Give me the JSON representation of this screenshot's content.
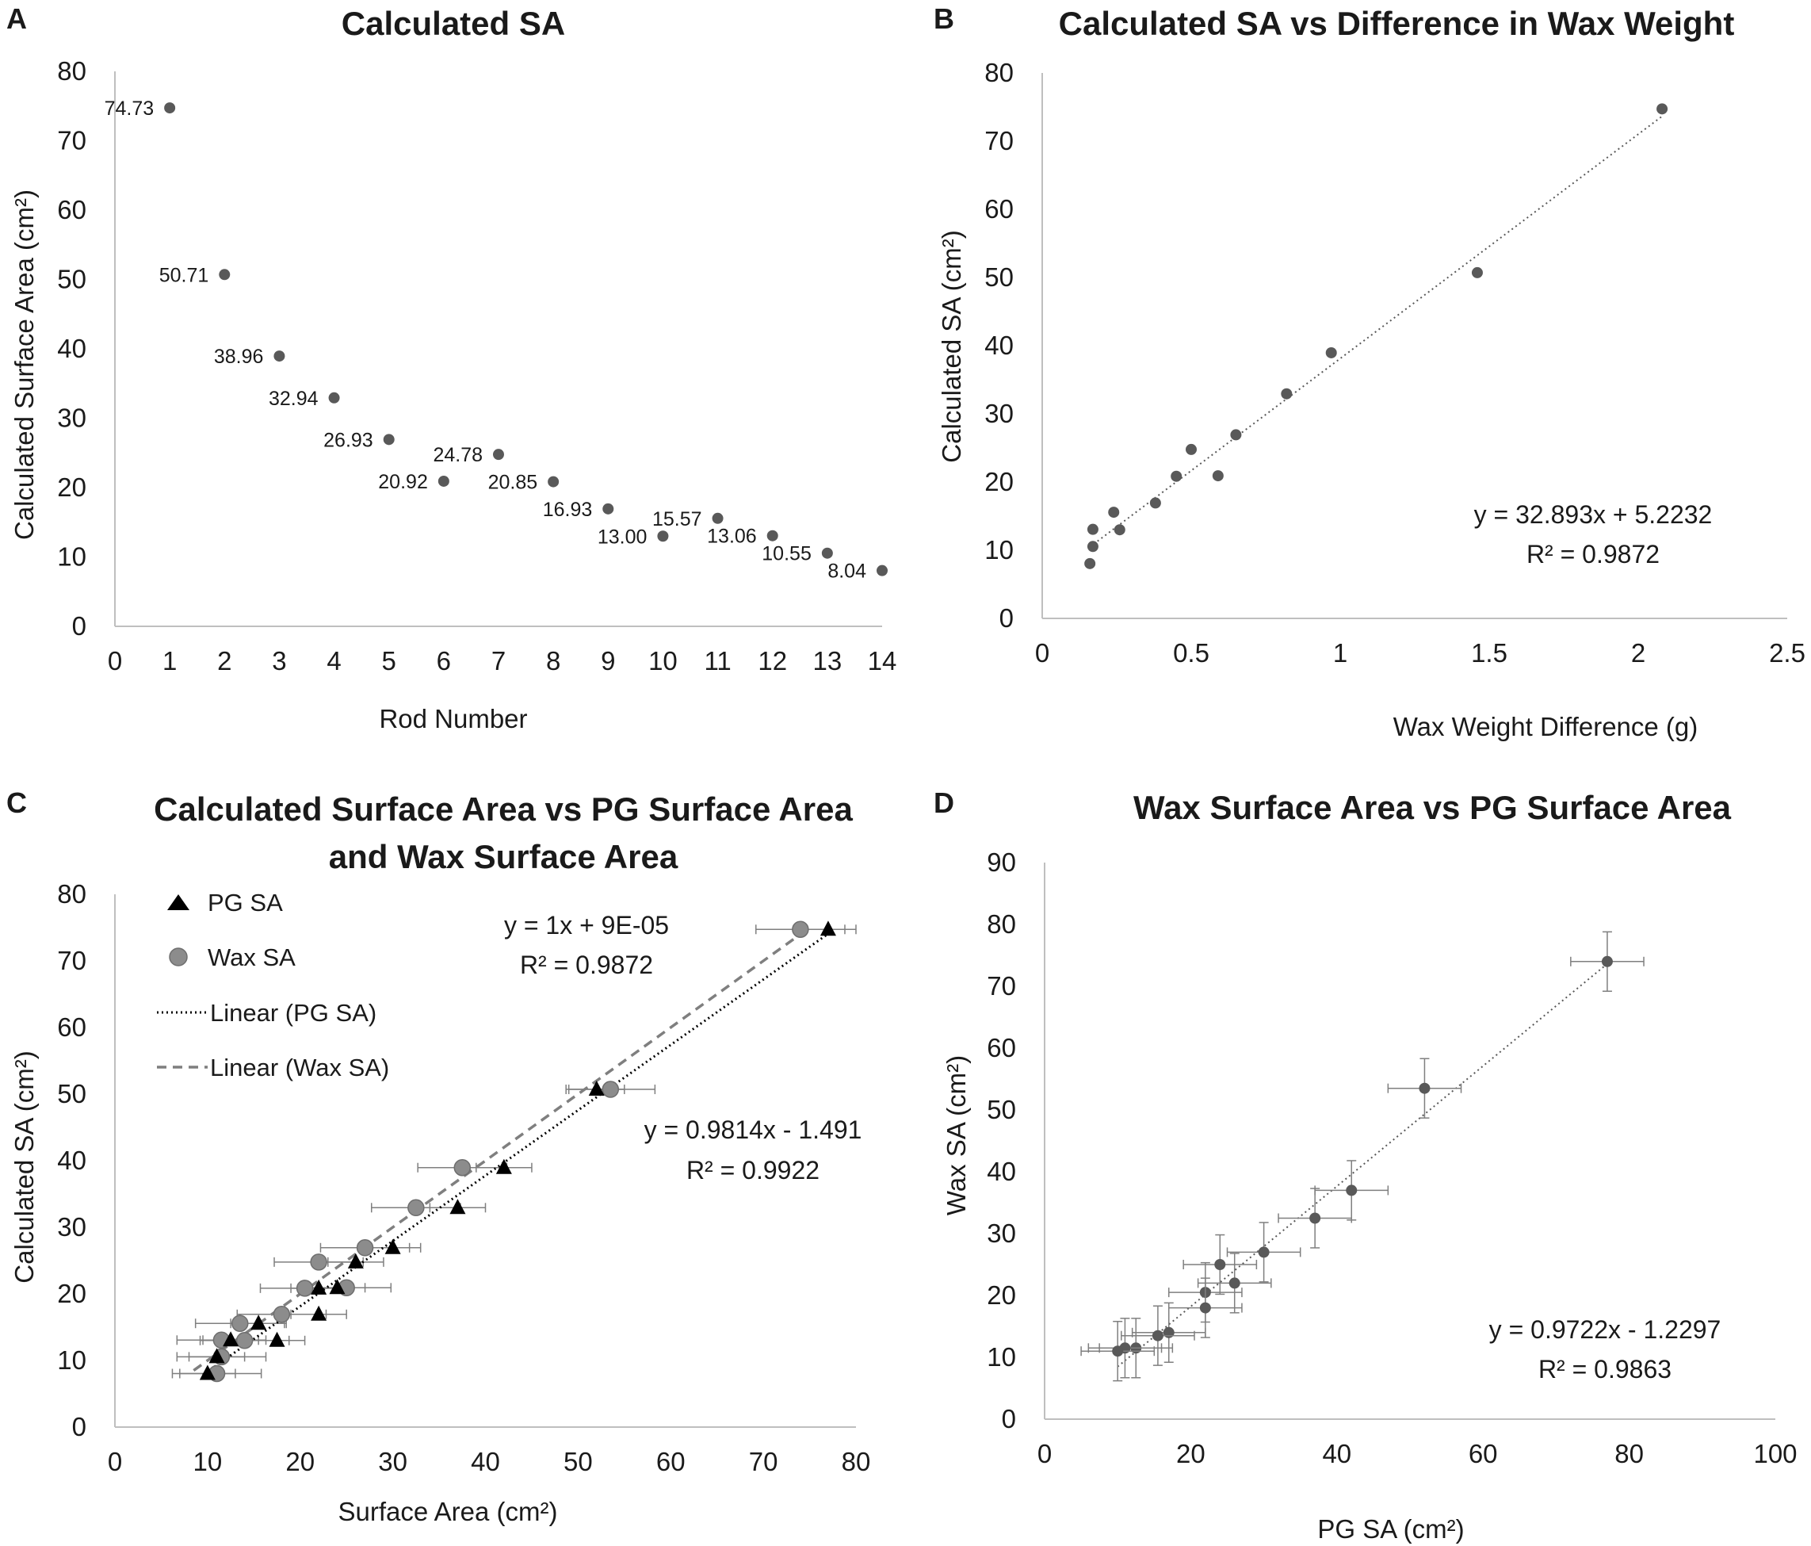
{
  "colors": {
    "marker": "#595959",
    "marker_light": "#8c8c8c",
    "triangle": "#000000",
    "axis": "#bfbfbf",
    "errorbar": "#7f7f7f",
    "text": "#1a1a1a"
  },
  "chart_data": [
    {
      "id": "A",
      "panel_letter": "A",
      "type": "scatter",
      "title": "Calculated SA",
      "xlabel": "Rod Number",
      "ylabel": "Calculated Surface Area (cm²)",
      "xlim": [
        0,
        14
      ],
      "ylim": [
        0,
        80
      ],
      "xticks": [
        0,
        1,
        2,
        3,
        4,
        5,
        6,
        7,
        8,
        9,
        10,
        11,
        12,
        13,
        14
      ],
      "yticks": [
        0,
        10,
        20,
        30,
        40,
        50,
        60,
        70,
        80
      ],
      "series": [
        {
          "name": "Calculated SA",
          "x": [
            1,
            2,
            3,
            4,
            5,
            6,
            7,
            8,
            9,
            10,
            11,
            12,
            13,
            14
          ],
          "y": [
            74.73,
            50.71,
            38.96,
            32.94,
            26.93,
            20.92,
            24.78,
            20.85,
            16.93,
            13.0,
            15.57,
            13.06,
            10.55,
            8.04
          ],
          "labels": [
            "74.73",
            "50.71",
            "38.96",
            "32.94",
            "26.93",
            "20.92",
            "24.78",
            "20.85",
            "16.93",
            "13.00",
            "15.57",
            "13.06",
            "10.55",
            "8.04"
          ]
        }
      ]
    },
    {
      "id": "B",
      "panel_letter": "B",
      "type": "scatter",
      "title": "Calculated SA vs Difference in Wax Weight",
      "xlabel": "Wax Weight Difference (g)",
      "ylabel": "Calculated SA (cm²)",
      "xlim": [
        0,
        2.5
      ],
      "ylim": [
        0,
        80
      ],
      "xticks": [
        0,
        0.5,
        1,
        1.5,
        2,
        2.5
      ],
      "xtick_labels": [
        "0",
        "0.5",
        "1",
        "1.5",
        "2",
        "2.5"
      ],
      "yticks": [
        0,
        10,
        20,
        30,
        40,
        50,
        60,
        70,
        80
      ],
      "series": [
        {
          "name": "Calculated SA",
          "x": [
            2.08,
            1.46,
            0.97,
            0.82,
            0.65,
            0.5,
            0.59,
            0.45,
            0.38,
            0.26,
            0.24,
            0.17,
            0.17,
            0.16
          ],
          "y": [
            74.73,
            50.71,
            38.96,
            32.94,
            26.93,
            24.78,
            20.92,
            20.85,
            16.93,
            13.0,
            15.57,
            13.06,
            10.55,
            8.04
          ]
        }
      ],
      "trendline": {
        "slope": 32.893,
        "intercept": 5.2232,
        "x_range": [
          0.16,
          2.08
        ]
      },
      "annotations": [
        "y = 32.893x + 5.2232",
        "R² = 0.9872"
      ]
    },
    {
      "id": "C",
      "panel_letter": "C",
      "type": "scatter",
      "title": [
        "Calculated Surface Area vs PG Surface Area",
        "and Wax Surface Area"
      ],
      "xlabel": "Surface Area (cm²)",
      "ylabel": "Calculated SA (cm²)",
      "xlim": [
        0,
        80
      ],
      "ylim": [
        0,
        80
      ],
      "xticks": [
        0,
        10,
        20,
        30,
        40,
        50,
        60,
        70,
        80
      ],
      "yticks": [
        0,
        10,
        20,
        30,
        40,
        50,
        60,
        70,
        80
      ],
      "legend": {
        "position": "top-left",
        "items": [
          "PG SA",
          "Wax SA",
          "Linear (PG SA)",
          "Linear (Wax SA)"
        ]
      },
      "series": [
        {
          "name": "PG SA",
          "marker": "triangle",
          "x": [
            77,
            52,
            42,
            37,
            30,
            26,
            24,
            22,
            22,
            17.5,
            15.5,
            12.5,
            11,
            10
          ],
          "y": [
            74.73,
            50.71,
            38.96,
            32.94,
            26.93,
            24.78,
            20.92,
            20.85,
            16.93,
            13.0,
            15.57,
            13.06,
            10.55,
            8.04
          ],
          "xerr": 3
        },
        {
          "name": "Wax SA",
          "marker": "circle",
          "x": [
            74,
            53.5,
            37.5,
            32.5,
            27,
            22,
            25,
            20.5,
            18,
            14,
            13.5,
            11.5,
            11.5,
            11
          ],
          "y": [
            74.73,
            50.71,
            38.96,
            32.94,
            26.93,
            24.78,
            20.92,
            20.85,
            16.93,
            13.0,
            15.57,
            13.06,
            10.55,
            8.04
          ],
          "xerr": 4.8
        }
      ],
      "trendlines": [
        {
          "name": "Linear (PG SA)",
          "style": "dotted",
          "slope": 0.9814,
          "intercept": -1.491,
          "x_range": [
            9.5,
            77
          ]
        },
        {
          "name": "Linear (Wax SA)",
          "style": "dashed",
          "slope": 1,
          "intercept": 9e-05,
          "x_range": [
            8.5,
            74
          ]
        }
      ],
      "annotations": {
        "wax": [
          "y = 1x + 9E-05",
          "R² = 0.9872"
        ],
        "pg": [
          "y = 0.9814x - 1.491",
          "R² = 0.9922"
        ]
      }
    },
    {
      "id": "D",
      "panel_letter": "D",
      "type": "scatter",
      "title": "Wax Surface Area vs PG Surface Area",
      "xlabel": "PG SA (cm²)",
      "ylabel": "Wax SA (cm²)",
      "xlim": [
        0,
        100
      ],
      "ylim": [
        0,
        90
      ],
      "xticks": [
        0,
        20,
        40,
        60,
        80,
        100
      ],
      "yticks": [
        0,
        10,
        20,
        30,
        40,
        50,
        60,
        70,
        80,
        90
      ],
      "series": [
        {
          "name": "Wax SA vs PG SA",
          "x": [
            77,
            52,
            42,
            37,
            30,
            24,
            26,
            22,
            22,
            17,
            15.5,
            12.5,
            11,
            10
          ],
          "y": [
            74,
            53.5,
            37,
            32.5,
            27,
            25,
            22,
            20.5,
            18,
            14,
            13.5,
            11.5,
            11.5,
            11
          ],
          "xerr": 5,
          "yerr": 4.8
        }
      ],
      "trendline": {
        "slope": 0.9722,
        "intercept": -1.2297,
        "x_range": [
          10,
          77
        ]
      },
      "annotations": [
        "y = 0.9722x - 1.2297",
        "R² = 0.9863"
      ]
    }
  ]
}
